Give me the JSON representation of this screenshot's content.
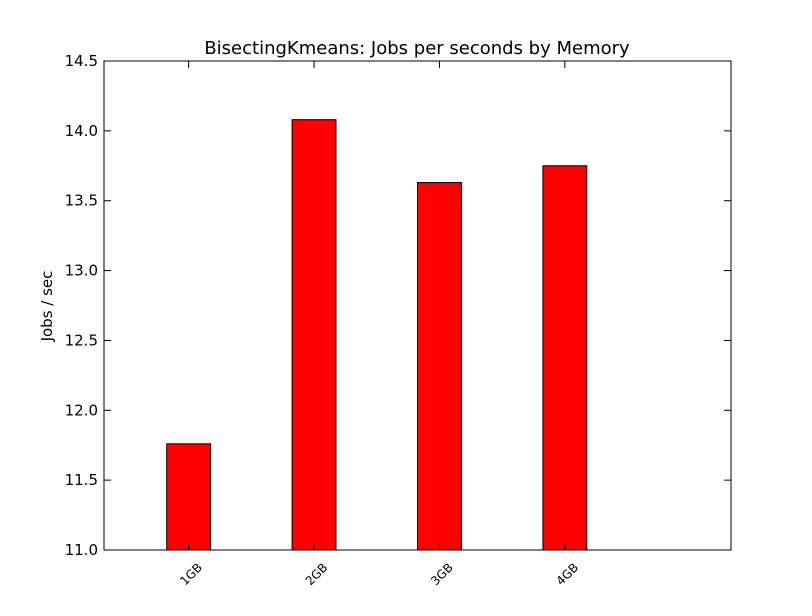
{
  "chart_data": {
    "type": "bar",
    "title": "BisectingKmeans: Jobs per seconds by Memory",
    "xlabel": "",
    "ylabel": "Jobs / sec",
    "categories": [
      "1GB",
      "2GB",
      "3GB",
      "4GB"
    ],
    "values": [
      11.76,
      14.08,
      13.63,
      13.75
    ],
    "ylim": [
      11.0,
      14.5
    ],
    "yticks": [
      "11.0",
      "11.5",
      "12.0",
      "12.5",
      "13.0",
      "13.5",
      "14.0",
      "14.5"
    ],
    "x_tick_rotation": "45 degrees",
    "bar_color": "#ff0000",
    "edge_color": "#000000",
    "grid": false,
    "legend": "none"
  }
}
